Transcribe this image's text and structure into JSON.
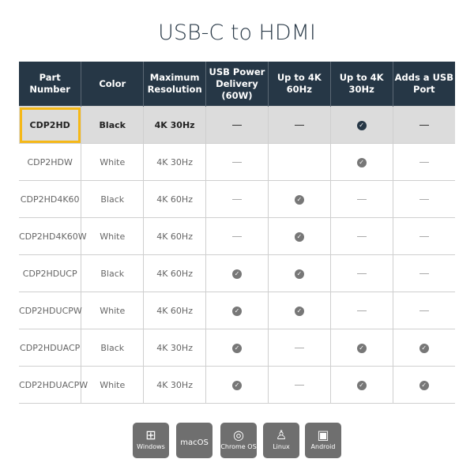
{
  "title": "USB-C to HDMI",
  "colors": {
    "header": "#263746",
    "highlight_row": "#dcdcdc",
    "selection": "#f5b818"
  },
  "headers": [
    "Part Number",
    "Color",
    "Maximum Resolution",
    "USB Power Delivery (60W)",
    "Up to 4K 60Hz",
    "Up to 4K 30Hz",
    "Adds a USB Port"
  ],
  "rows": [
    {
      "part": "CDP2HD",
      "color": "Black",
      "res": "4K 30Hz",
      "pd": "dash",
      "k60": "dash",
      "k30": "check",
      "usb": "dash",
      "selected": true
    },
    {
      "part": "CDP2HDW",
      "color": "White",
      "res": "4K 30Hz",
      "pd": "dash",
      "k60": "",
      "k30": "check",
      "usb": "dash"
    },
    {
      "part": "CDP2HD4K60",
      "color": "Black",
      "res": "4K 60Hz",
      "pd": "dash",
      "k60": "check",
      "k30": "dash",
      "usb": "dash"
    },
    {
      "part": "CDP2HD4K60W",
      "color": "White",
      "res": "4K 60Hz",
      "pd": "dash",
      "k60": "check",
      "k30": "dash",
      "usb": "dash"
    },
    {
      "part": "CDP2HDUCP",
      "color": "Black",
      "res": "4K 60Hz",
      "pd": "check",
      "k60": "check",
      "k30": "dash",
      "usb": "dash"
    },
    {
      "part": "CDP2HDUCPW",
      "color": "White",
      "res": "4K 60Hz",
      "pd": "check",
      "k60": "check",
      "k30": "dash",
      "usb": "dash"
    },
    {
      "part": "CDP2HDUACP",
      "color": "Black",
      "res": "4K 30Hz",
      "pd": "check",
      "k60": "dash",
      "k30": "check",
      "usb": "check"
    },
    {
      "part": "CDP2HDUACPW",
      "color": "White",
      "res": "4K 30Hz",
      "pd": "check",
      "k60": "dash",
      "k30": "check",
      "usb": "check"
    }
  ],
  "os": [
    {
      "label": "Windows",
      "icon": "windows-icon",
      "glyph": "⊞"
    },
    {
      "label": "macOS",
      "icon": "",
      "glyph": ""
    },
    {
      "label": "Chrome OS",
      "icon": "chrome-icon",
      "glyph": "◎"
    },
    {
      "label": "Linux",
      "icon": "linux-icon",
      "glyph": "♙"
    },
    {
      "label": "Android",
      "icon": "android-icon",
      "glyph": "▣"
    }
  ]
}
